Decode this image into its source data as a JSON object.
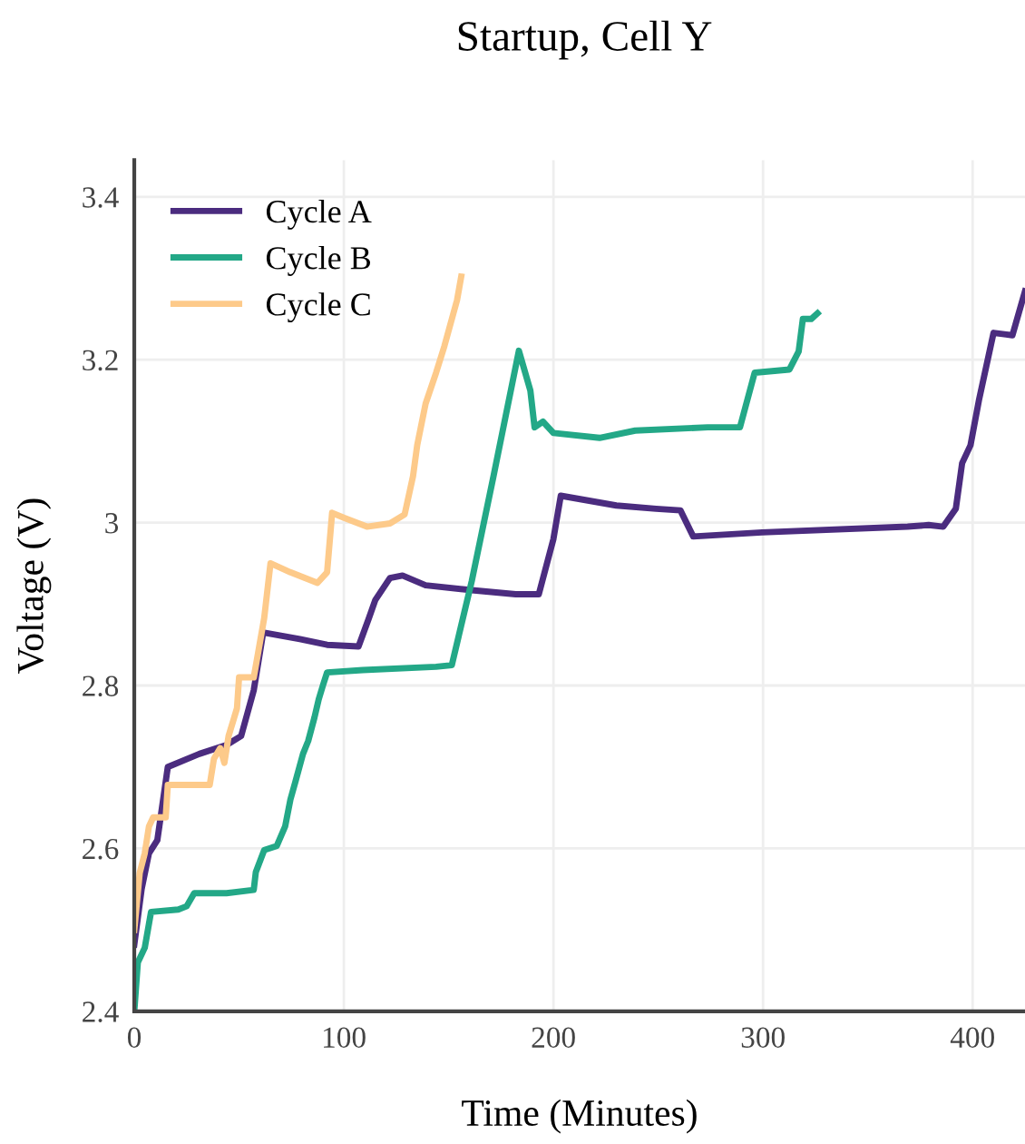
{
  "chart_data": {
    "type": "line",
    "title": "Startup, Cell Y",
    "xlabel": "Time (Minutes)",
    "ylabel": "Voltage (V)",
    "xlim": [
      0,
      425
    ],
    "ylim": [
      2.4,
      3.445
    ],
    "xticks": [
      0,
      100,
      200,
      300,
      400
    ],
    "yticks": [
      2.4,
      2.6,
      2.8,
      {
        "value": 3,
        "label": "3"
      },
      3.2,
      3.4
    ],
    "grid": true,
    "legend": "top left",
    "series": [
      {
        "name": "Cycle A",
        "color": "#4b2c7f",
        "x": [
          0,
          3.5,
          7,
          11,
          16,
          31,
          44,
          51,
          57,
          61.5,
          79,
          92,
          107,
          112,
          115,
          122,
          128,
          139,
          161,
          182,
          193,
          200,
          203.5,
          230,
          249,
          260.6,
          266.7,
          299.6,
          369,
          379,
          386,
          392,
          395,
          399,
          403,
          410,
          416,
          419,
          425
        ],
        "values": [
          2.482,
          2.55,
          2.594,
          2.61,
          2.7,
          2.716,
          2.727,
          2.738,
          2.794,
          2.865,
          2.857,
          2.85,
          2.848,
          2.883,
          2.905,
          2.932,
          2.935,
          2.923,
          2.917,
          2.912,
          2.912,
          2.98,
          3.033,
          3.021,
          3.017,
          3.015,
          2.983,
          2.988,
          2.995,
          2.997,
          2.995,
          3.017,
          3.073,
          3.095,
          3.15,
          3.233,
          3.231,
          3.23,
          3.284
        ]
      },
      {
        "name": "Cycle B",
        "color": "#23a887",
        "x": [
          0,
          1.7,
          5,
          8,
          21,
          25,
          28.6,
          44,
          57,
          58,
          62,
          68,
          72,
          74.5,
          77,
          80.5,
          83,
          86,
          88,
          90,
          92,
          109,
          144,
          151.5,
          161,
          171.4,
          183.5,
          189,
          191,
          195,
          200,
          222,
          239,
          273.6,
          289,
          296,
          312.6,
          317,
          319,
          323,
          326
        ],
        "values": [
          2.4,
          2.46,
          2.478,
          2.522,
          2.525,
          2.529,
          2.545,
          2.545,
          2.549,
          2.571,
          2.598,
          2.603,
          2.627,
          2.66,
          2.683,
          2.716,
          2.732,
          2.761,
          2.783,
          2.8,
          2.816,
          2.819,
          2.823,
          2.825,
          2.928,
          3.057,
          3.211,
          3.162,
          3.117,
          3.124,
          3.11,
          3.104,
          3.113,
          3.117,
          3.117,
          3.184,
          3.188,
          3.21,
          3.25,
          3.25,
          3.257
        ]
      },
      {
        "name": "Cycle C",
        "color": "#fdca8a",
        "x": [
          0,
          2.6,
          5,
          7,
          9,
          15,
          16,
          27,
          36,
          38,
          41,
          43,
          45,
          49,
          50,
          57,
          59,
          62,
          65,
          74.5,
          87.4,
          92,
          94.4,
          100,
          111,
          122,
          129,
          133,
          135,
          139,
          144,
          148,
          154,
          156
        ],
        "values": [
          2.5,
          2.57,
          2.594,
          2.627,
          2.638,
          2.638,
          2.678,
          2.678,
          2.678,
          2.71,
          2.723,
          2.705,
          2.738,
          2.772,
          2.81,
          2.81,
          2.839,
          2.883,
          2.95,
          2.939,
          2.926,
          2.939,
          3.012,
          3.006,
          2.995,
          2.999,
          3.01,
          3.057,
          3.095,
          3.146,
          3.184,
          3.217,
          3.273,
          3.302
        ]
      }
    ]
  }
}
